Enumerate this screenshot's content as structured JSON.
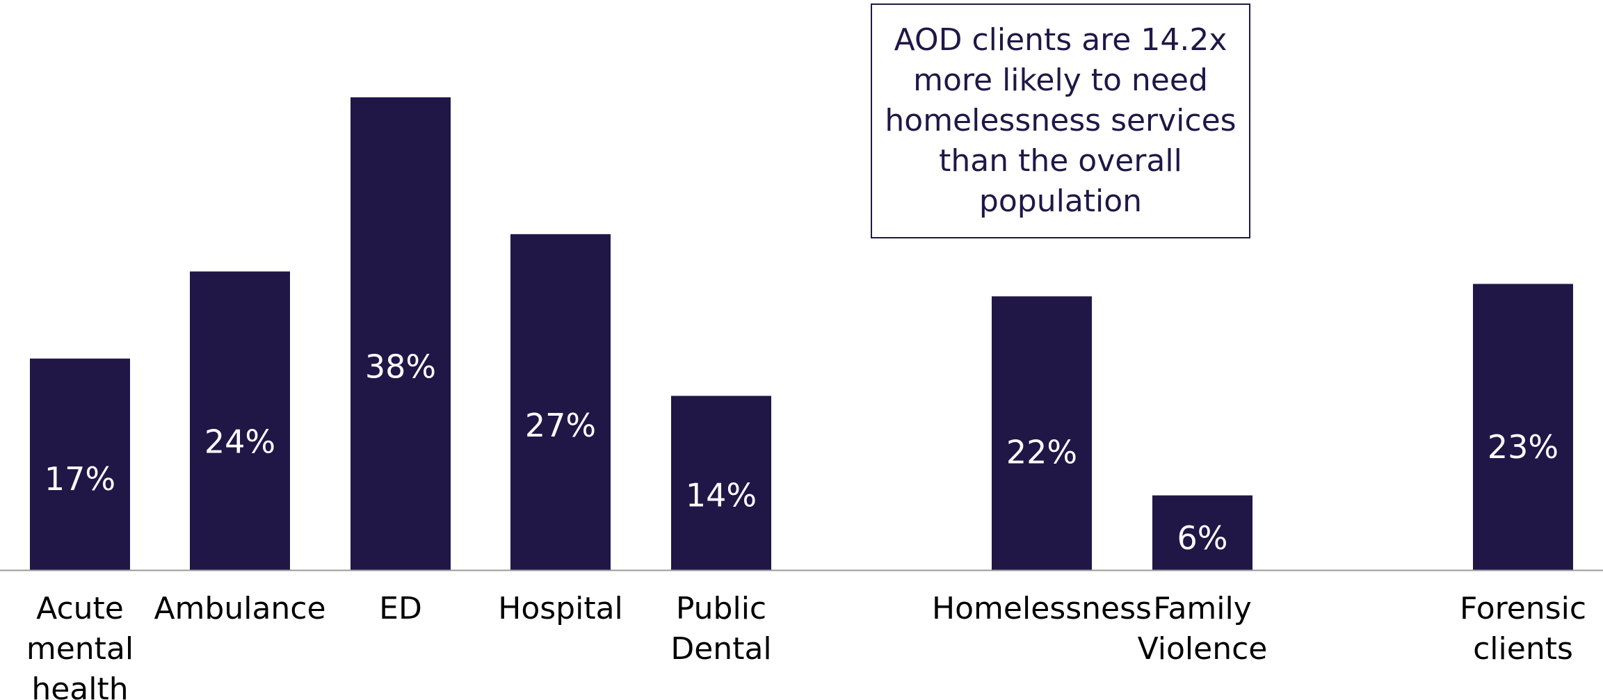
{
  "chart_data": {
    "type": "bar",
    "categories": [
      [
        "Acute",
        "mental",
        "health"
      ],
      [
        "Ambulance"
      ],
      [
        "ED"
      ],
      [
        "Hospital"
      ],
      [
        "Public",
        "Dental"
      ],
      [
        "Homelessness"
      ],
      [
        "Family",
        "Violence"
      ],
      [
        "Forensic",
        "clients"
      ]
    ],
    "values": [
      17,
      24,
      38,
      27,
      14,
      22,
      6,
      23
    ],
    "value_labels": [
      "17%",
      "24%",
      "38%",
      "27%",
      "14%",
      "22%",
      "6%",
      "23%"
    ],
    "unit": "%",
    "ylim": [
      0,
      38
    ],
    "bar_color": "#201747",
    "axis_color": "#9a9a9a",
    "grid": false,
    "annotation": "AOD clients are 14.2x more likely to need homelessness services than the overall population"
  }
}
